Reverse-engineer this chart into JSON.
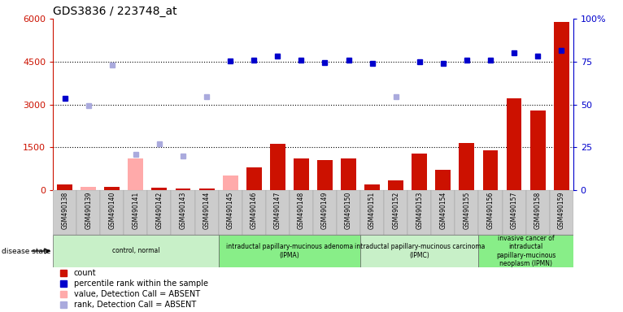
{
  "title": "GDS3836 / 223748_at",
  "samples": [
    "GSM490138",
    "GSM490139",
    "GSM490140",
    "GSM490141",
    "GSM490142",
    "GSM490143",
    "GSM490144",
    "GSM490145",
    "GSM490146",
    "GSM490147",
    "GSM490148",
    "GSM490149",
    "GSM490150",
    "GSM490151",
    "GSM490152",
    "GSM490153",
    "GSM490154",
    "GSM490155",
    "GSM490156",
    "GSM490157",
    "GSM490158",
    "GSM490159"
  ],
  "count_present": [
    200,
    null,
    100,
    null,
    80,
    60,
    60,
    null,
    800,
    1620,
    1100,
    1050,
    1100,
    200,
    350,
    1280,
    700,
    1650,
    1400,
    3200,
    2800,
    5900
  ],
  "count_absent": [
    null,
    100,
    null,
    1100,
    null,
    null,
    null,
    500,
    null,
    null,
    null,
    null,
    null,
    null,
    null,
    null,
    null,
    null,
    null,
    null,
    null,
    null
  ],
  "percentile_present": [
    3200,
    null,
    null,
    null,
    null,
    null,
    null,
    4520,
    4560,
    4700,
    4550,
    4460,
    4560,
    4450,
    null,
    4500,
    4430,
    4560,
    4560,
    4800,
    4700,
    4900
  ],
  "percentile_absent": [
    null,
    2950,
    4380,
    1250,
    1620,
    1200,
    3280,
    null,
    null,
    null,
    null,
    null,
    null,
    null,
    3280,
    null,
    null,
    null,
    null,
    null,
    null,
    null
  ],
  "disease_groups": [
    {
      "label": "control, normal",
      "start": 0,
      "end": 7,
      "color": "#c8f0c8"
    },
    {
      "label": "intraductal papillary-mucinous adenoma\n(IPMA)",
      "start": 7,
      "end": 13,
      "color": "#88ee88"
    },
    {
      "label": "intraductal papillary-mucinous carcinoma\n(IPMC)",
      "start": 13,
      "end": 18,
      "color": "#c8f0c8"
    },
    {
      "label": "invasive cancer of\nintraductal\npapillary-mucinous\nneoplasm (IPMN)",
      "start": 18,
      "end": 22,
      "color": "#88ee88"
    }
  ],
  "ylim_left": [
    0,
    6000
  ],
  "ylim_right": [
    0,
    100
  ],
  "yticks_left": [
    0,
    1500,
    3000,
    4500,
    6000
  ],
  "ytick_labels_left": [
    "0",
    "1500",
    "3000",
    "4500",
    "6000"
  ],
  "yticks_right_pct": [
    0,
    25,
    50,
    75,
    100
  ],
  "ytick_labels_right": [
    "0",
    "25",
    "50",
    "75",
    "100%"
  ],
  "bar_color_present": "#cc1100",
  "bar_color_absent": "#ffaaaa",
  "dot_color_present": "#0000cc",
  "dot_color_absent": "#aaaadd",
  "left_axis_color": "#cc1100",
  "right_axis_color": "#0000cc",
  "bg_color": "#ffffff"
}
